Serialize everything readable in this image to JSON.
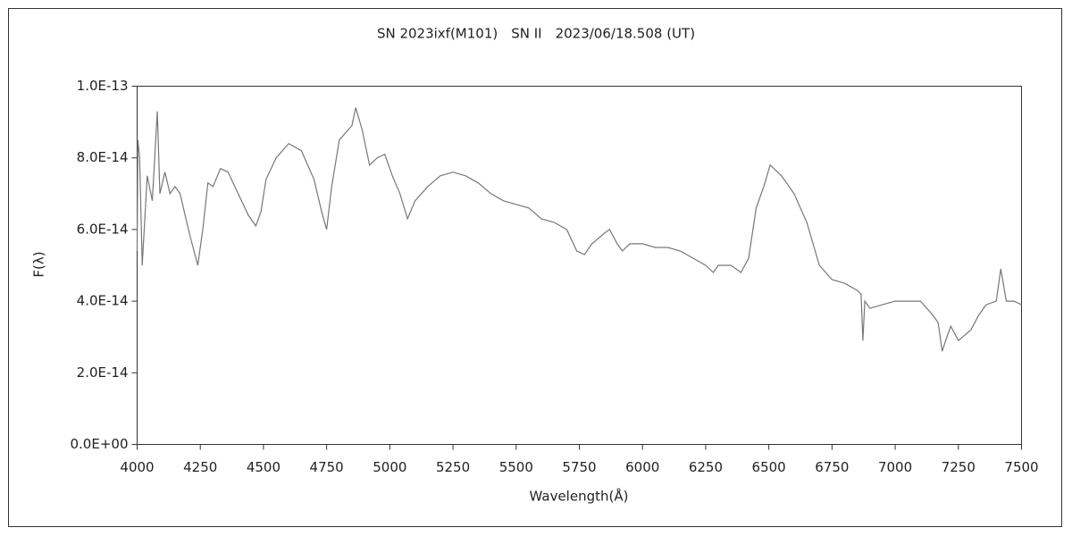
{
  "chart_data": {
    "type": "line",
    "title": "SN 2023ixf(M101)　SN II　2023/06/18.508 (UT)",
    "x_label": "Wavelength(Å)",
    "y_label": "F(λ)",
    "xlim": [
      4000,
      7500
    ],
    "xticks": [
      4000,
      4250,
      4500,
      4750,
      5000,
      5250,
      5500,
      5750,
      6000,
      6250,
      6500,
      6750,
      7000,
      7250,
      7500
    ],
    "ylim": [
      0,
      1e-13
    ],
    "yticks": [
      {
        "value": 0,
        "label": "0.0E+00"
      },
      {
        "value": 2e-14,
        "label": "2.0E-14"
      },
      {
        "value": 4e-14,
        "label": "4.0E-14"
      },
      {
        "value": 6e-14,
        "label": "6.0E-14"
      },
      {
        "value": 8e-14,
        "label": "8.0E-14"
      },
      {
        "value": 1e-13,
        "label": "1.0E-13"
      }
    ],
    "grid": false,
    "series": [
      {
        "color": "#777777",
        "x": [
          4000,
          4003,
          4010,
          4020,
          4040,
          4060,
          4080,
          4090,
          4110,
          4130,
          4150,
          4170,
          4190,
          4210,
          4240,
          4260,
          4280,
          4300,
          4330,
          4360,
          4400,
          4440,
          4470,
          4490,
          4510,
          4550,
          4600,
          4650,
          4700,
          4730,
          4750,
          4770,
          4800,
          4850,
          4865,
          4890,
          4920,
          4950,
          4980,
          5010,
          5040,
          5070,
          5100,
          5150,
          5200,
          5250,
          5300,
          5350,
          5400,
          5450,
          5500,
          5550,
          5600,
          5650,
          5700,
          5740,
          5770,
          5800,
          5850,
          5870,
          5900,
          5920,
          5950,
          6000,
          6050,
          6100,
          6150,
          6200,
          6250,
          6280,
          6300,
          6350,
          6390,
          6420,
          6450,
          6480,
          6505,
          6550,
          6600,
          6650,
          6700,
          6750,
          6800,
          6850,
          6865,
          6872,
          6880,
          6900,
          6950,
          7000,
          7050,
          7100,
          7150,
          7170,
          7186,
          7200,
          7220,
          7250,
          7300,
          7330,
          7360,
          7400,
          7418,
          7440,
          7470,
          7500
        ],
        "values": [
          5.4e-14,
          8.5e-14,
          8e-14,
          5e-14,
          7.5e-14,
          6.8e-14,
          9.3e-14,
          7e-14,
          7.6e-14,
          7e-14,
          7.2e-14,
          7e-14,
          6.4e-14,
          5.8e-14,
          5e-14,
          6e-14,
          7.3e-14,
          7.2e-14,
          7.7e-14,
          7.6e-14,
          7e-14,
          6.4e-14,
          6.1e-14,
          6.5e-14,
          7.4e-14,
          8e-14,
          8.4e-14,
          8.2e-14,
          7.4e-14,
          6.5e-14,
          6e-14,
          7.2e-14,
          8.5e-14,
          8.9e-14,
          9.4e-14,
          8.8e-14,
          7.8e-14,
          8e-14,
          8.1e-14,
          7.5e-14,
          7e-14,
          6.3e-14,
          6.8e-14,
          7.2e-14,
          7.5e-14,
          7.6e-14,
          7.5e-14,
          7.3e-14,
          7e-14,
          6.8e-14,
          6.7e-14,
          6.6e-14,
          6.3e-14,
          6.2e-14,
          6e-14,
          5.4e-14,
          5.3e-14,
          5.6e-14,
          5.9e-14,
          6e-14,
          5.6e-14,
          5.4e-14,
          5.6e-14,
          5.6e-14,
          5.5e-14,
          5.5e-14,
          5.4e-14,
          5.2e-14,
          5e-14,
          4.8e-14,
          5e-14,
          5e-14,
          4.8e-14,
          5.2e-14,
          6.6e-14,
          7.2e-14,
          7.8e-14,
          7.5e-14,
          7e-14,
          6.2e-14,
          5e-14,
          4.6e-14,
          4.5e-14,
          4.3e-14,
          4.2e-14,
          2.9e-14,
          4e-14,
          3.8e-14,
          3.9e-14,
          4e-14,
          4e-14,
          4e-14,
          3.6e-14,
          3.4e-14,
          2.6e-14,
          2.9e-14,
          3.3e-14,
          2.9e-14,
          3.2e-14,
          3.6e-14,
          3.9e-14,
          4e-14,
          4.9e-14,
          4e-14,
          4e-14,
          3.9e-14
        ]
      }
    ]
  }
}
